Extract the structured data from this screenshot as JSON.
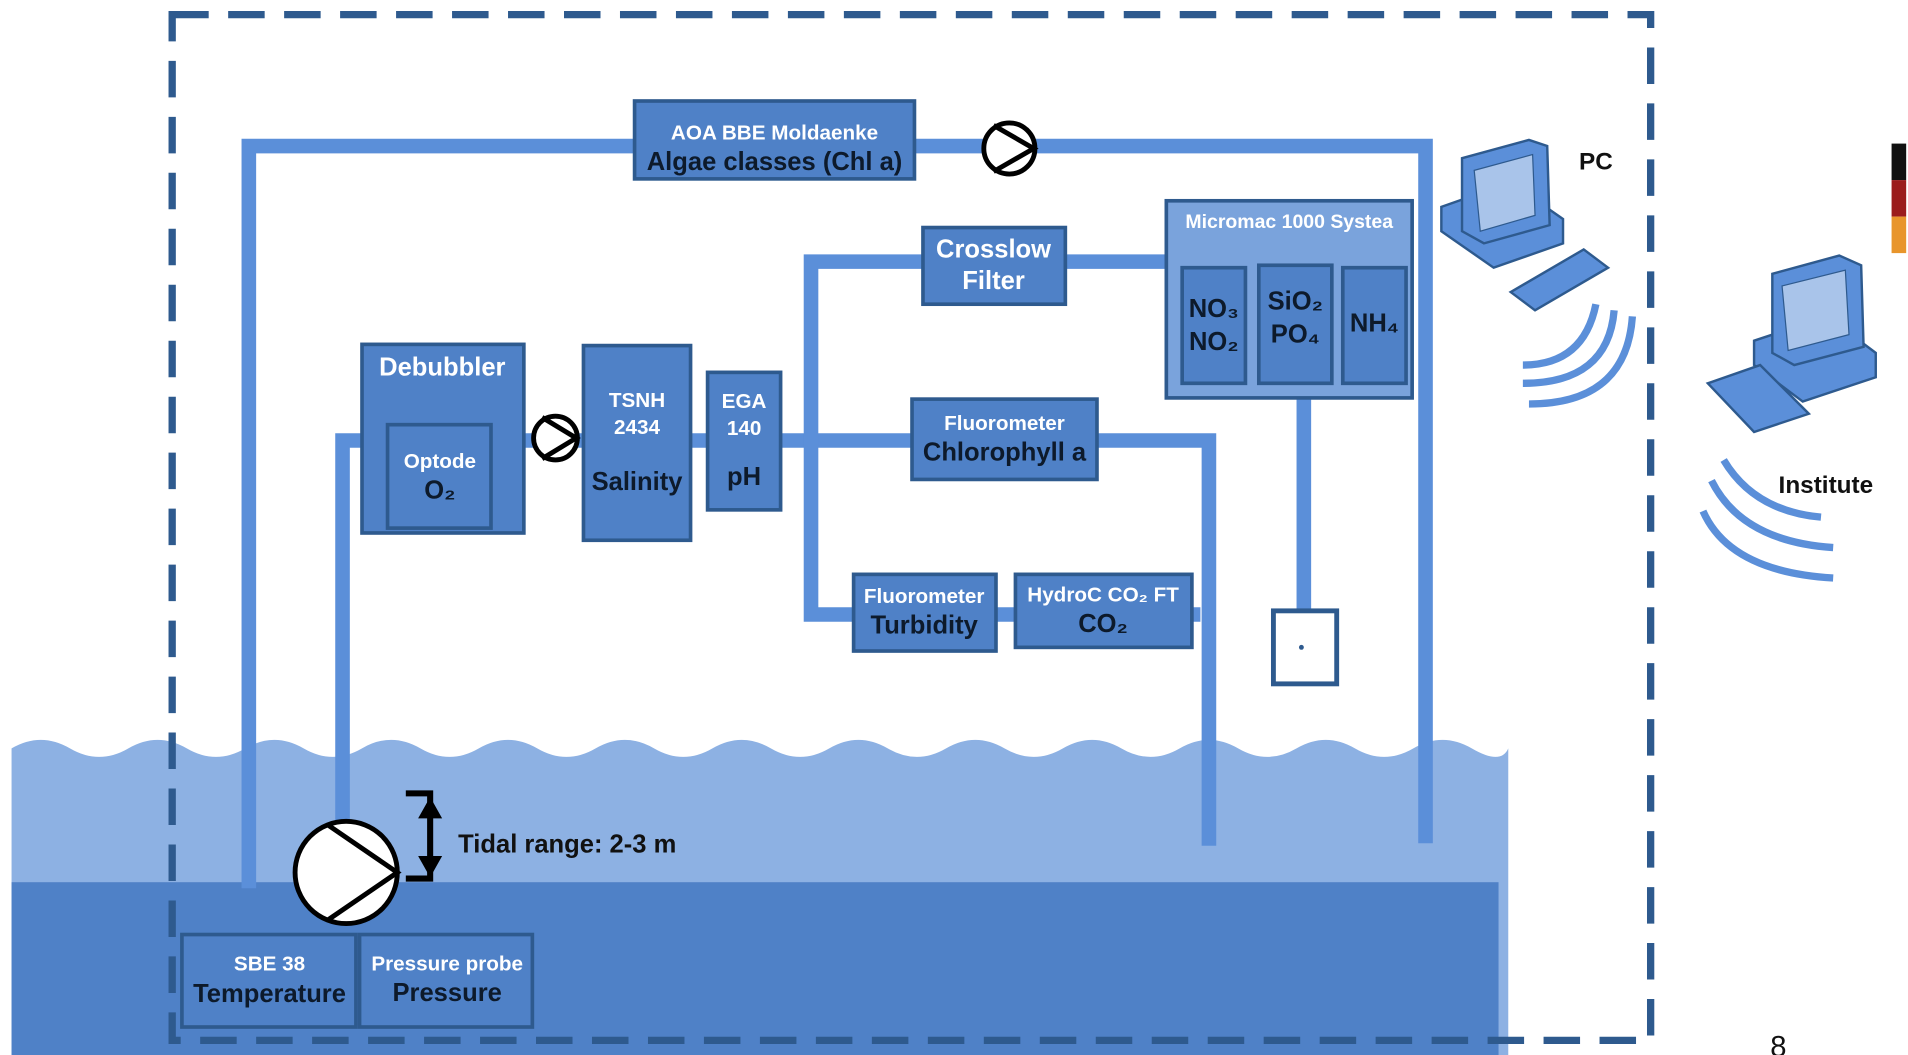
{
  "algae": {
    "title": "AOA BBE Moldaenke",
    "label": "Algae classes (Chl a)"
  },
  "crossflow": {
    "line1": "Crosslow",
    "line2": "Filter"
  },
  "micromac": {
    "title": "Micromac 1000 Systea",
    "nutrients": [
      [
        "NO₃",
        "NO₂"
      ],
      [
        "SiO₂",
        "PO₄"
      ],
      [
        "NH₄"
      ]
    ]
  },
  "debubbler": {
    "title": "Debubbler",
    "optode": "Optode",
    "label": "O₂"
  },
  "tsnh": {
    "line1": "TSNH",
    "line2": "2434",
    "label": "Salinity"
  },
  "ega": {
    "line1": "EGA",
    "line2": "140",
    "label": "pH"
  },
  "chl": {
    "title": "Fluorometer",
    "label": "Chlorophyll a"
  },
  "turb": {
    "title": "Fluorometer",
    "label": "Turbidity"
  },
  "hydroc": {
    "title": "HydroC CO₂ FT",
    "label": "CO₂"
  },
  "sbe": {
    "title": "SBE 38",
    "label": "Temperature"
  },
  "pressure": {
    "title": "Pressure probe",
    "label": "Pressure"
  },
  "tidal": "Tidal range: 2-3 m",
  "pc": "PC",
  "institute": "Institute",
  "page_number": "8"
}
